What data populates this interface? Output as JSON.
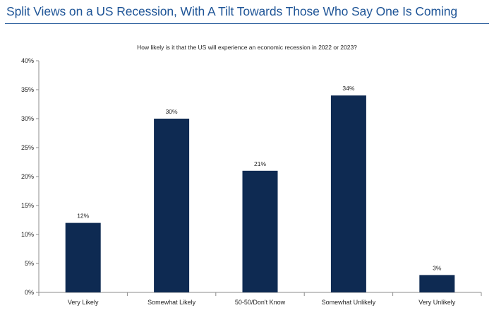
{
  "page": {
    "title": "Split Views on a US Recession, With A Tilt Towards Those Who Say One Is Coming",
    "accent_color": "#1f5597"
  },
  "chart_data": {
    "type": "bar",
    "title": "How likely is it that the US will experience an economic recession in 2022 or 2023?",
    "xlabel": "",
    "ylabel": "",
    "categories": [
      "Very Likely",
      "Somewhat Likely",
      "50-50/Don't Know",
      "Somewhat Unlikely",
      "Very Unlikely"
    ],
    "values": [
      12,
      30,
      21,
      34,
      3
    ],
    "value_labels": [
      "12%",
      "30%",
      "21%",
      "34%",
      "3%"
    ],
    "ylim": [
      0,
      40
    ],
    "yticks": [
      "0%",
      "5%",
      "10%",
      "15%",
      "20%",
      "25%",
      "30%",
      "35%",
      "40%"
    ],
    "grid": false,
    "legend": "none",
    "bar_color": "#0e2a52"
  }
}
